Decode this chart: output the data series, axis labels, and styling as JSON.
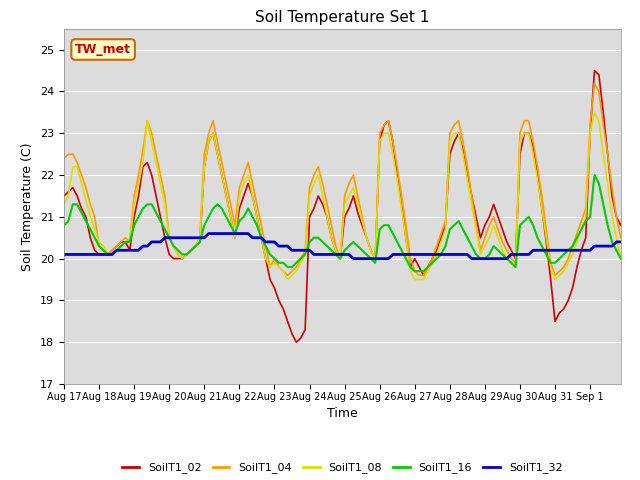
{
  "title": "Soil Temperature Set 1",
  "xlabel": "Time",
  "ylabel": "Soil Temperature (C)",
  "ylim": [
    17.0,
    25.5
  ],
  "yticks": [
    17.0,
    18.0,
    19.0,
    20.0,
    21.0,
    22.0,
    23.0,
    24.0,
    25.0
  ],
  "bg_color": "#dcdcdc",
  "series_colors": {
    "SoilT1_02": "#cc0000",
    "SoilT1_04": "#ff9900",
    "SoilT1_08": "#dddd00",
    "SoilT1_16": "#00cc00",
    "SoilT1_32": "#0000cc"
  },
  "annotation_text": "TW_met",
  "annotation_box_color": "#ffffcc",
  "annotation_box_edge": "#cc6600",
  "dates": [
    "Aug 17",
    "Aug 18",
    "Aug 19",
    "Aug 20",
    "Aug 21",
    "Aug 22",
    "Aug 23",
    "Aug 24",
    "Aug 25",
    "Aug 26",
    "Aug 27",
    "Aug 28",
    "Aug 29",
    "Aug 30",
    "Aug 31",
    "Sep 1"
  ],
  "SoilT1_02": [
    21.5,
    21.6,
    21.7,
    21.5,
    21.2,
    21.0,
    20.5,
    20.2,
    20.1,
    20.1,
    20.1,
    20.2,
    20.3,
    20.4,
    20.4,
    20.2,
    21.0,
    21.5,
    22.2,
    22.3,
    22.0,
    21.5,
    21.0,
    20.5,
    20.1,
    20.0,
    20.0,
    20.0,
    20.1,
    20.2,
    20.3,
    20.4,
    22.2,
    22.8,
    23.0,
    22.5,
    22.0,
    21.5,
    21.0,
    20.5,
    21.2,
    21.5,
    21.8,
    21.5,
    21.0,
    20.5,
    20.0,
    19.5,
    19.3,
    19.0,
    18.8,
    18.5,
    18.2,
    18.0,
    18.1,
    18.3,
    21.0,
    21.2,
    21.5,
    21.3,
    21.0,
    20.5,
    20.2,
    20.0,
    21.0,
    21.2,
    21.5,
    21.1,
    20.8,
    20.5,
    20.2,
    20.0,
    22.8,
    23.2,
    23.3,
    22.8,
    22.0,
    21.3,
    20.5,
    19.8,
    20.0,
    19.8,
    19.6,
    19.8,
    20.0,
    20.2,
    20.5,
    20.8,
    22.5,
    22.8,
    23.0,
    22.6,
    22.0,
    21.5,
    21.0,
    20.5,
    20.8,
    21.0,
    21.3,
    21.0,
    20.7,
    20.4,
    20.2,
    20.0,
    22.5,
    23.0,
    23.0,
    22.7,
    22.0,
    21.2,
    20.4,
    19.5,
    18.5,
    18.7,
    18.8,
    19.0,
    19.3,
    19.8,
    20.2,
    20.5,
    23.0,
    24.5,
    24.4,
    23.5,
    22.5,
    21.5,
    21.0,
    20.8
  ],
  "SoilT1_04": [
    22.4,
    22.5,
    22.5,
    22.3,
    22.0,
    21.7,
    21.3,
    21.0,
    20.3,
    20.2,
    20.1,
    20.2,
    20.3,
    20.4,
    20.5,
    20.4,
    21.5,
    22.0,
    22.6,
    23.3,
    23.0,
    22.5,
    22.0,
    21.5,
    20.5,
    20.3,
    20.1,
    20.0,
    20.1,
    20.2,
    20.3,
    20.5,
    22.5,
    23.0,
    23.3,
    22.8,
    22.3,
    21.8,
    21.3,
    20.8,
    21.7,
    22.0,
    22.3,
    21.8,
    21.3,
    20.8,
    20.3,
    19.8,
    20.0,
    19.8,
    19.7,
    19.6,
    19.7,
    19.8,
    20.0,
    20.2,
    21.7,
    22.0,
    22.2,
    21.8,
    21.3,
    20.8,
    20.3,
    20.0,
    21.5,
    21.8,
    22.0,
    21.5,
    21.0,
    20.5,
    20.2,
    20.0,
    23.0,
    23.2,
    23.3,
    22.8,
    22.2,
    21.5,
    20.8,
    20.0,
    19.7,
    19.6,
    19.6,
    19.8,
    20.0,
    20.3,
    20.6,
    20.9,
    23.0,
    23.2,
    23.3,
    22.8,
    22.2,
    21.5,
    20.8,
    20.2,
    20.5,
    20.8,
    21.0,
    20.7,
    20.4,
    20.2,
    20.0,
    19.9,
    23.0,
    23.3,
    23.3,
    22.8,
    22.2,
    21.5,
    20.7,
    19.9,
    19.6,
    19.7,
    19.8,
    20.0,
    20.3,
    20.6,
    20.9,
    21.2,
    23.2,
    24.2,
    24.0,
    23.2,
    22.5,
    21.7,
    21.0,
    20.5
  ],
  "SoilT1_08": [
    21.3,
    21.5,
    22.2,
    22.2,
    21.8,
    21.4,
    21.0,
    20.7,
    20.4,
    20.3,
    20.1,
    20.1,
    20.2,
    20.3,
    20.4,
    20.4,
    21.3,
    21.8,
    22.3,
    23.3,
    22.8,
    22.3,
    21.8,
    21.3,
    20.5,
    20.3,
    20.1,
    20.0,
    20.1,
    20.2,
    20.3,
    20.5,
    22.2,
    22.8,
    23.0,
    22.5,
    22.0,
    21.5,
    21.0,
    20.5,
    21.5,
    21.8,
    22.0,
    21.5,
    21.0,
    20.5,
    20.0,
    19.8,
    19.9,
    19.8,
    19.7,
    19.5,
    19.6,
    19.7,
    19.9,
    20.1,
    21.5,
    21.8,
    22.0,
    21.5,
    21.0,
    20.5,
    20.2,
    20.0,
    21.3,
    21.5,
    21.7,
    21.3,
    20.9,
    20.5,
    20.2,
    20.0,
    22.8,
    23.0,
    23.0,
    22.5,
    21.9,
    21.2,
    20.5,
    19.7,
    19.5,
    19.5,
    19.5,
    19.7,
    19.9,
    20.1,
    20.4,
    20.7,
    22.8,
    23.0,
    23.0,
    22.5,
    21.9,
    21.3,
    20.7,
    20.1,
    20.3,
    20.5,
    20.8,
    20.5,
    20.2,
    20.0,
    19.9,
    19.8,
    22.8,
    23.0,
    23.0,
    22.5,
    21.9,
    21.2,
    20.5,
    19.8,
    19.5,
    19.6,
    19.7,
    19.9,
    20.1,
    20.4,
    20.7,
    21.0,
    23.0,
    23.5,
    23.3,
    22.5,
    21.8,
    21.0,
    20.5,
    20.0
  ],
  "SoilT1_16": [
    20.8,
    20.9,
    21.3,
    21.3,
    21.1,
    20.9,
    20.7,
    20.5,
    20.3,
    20.2,
    20.1,
    20.1,
    20.2,
    20.3,
    20.4,
    20.4,
    20.8,
    21.0,
    21.2,
    21.3,
    21.3,
    21.1,
    20.9,
    20.7,
    20.5,
    20.3,
    20.2,
    20.1,
    20.1,
    20.2,
    20.3,
    20.4,
    20.8,
    21.0,
    21.2,
    21.3,
    21.2,
    21.0,
    20.8,
    20.6,
    20.9,
    21.0,
    21.2,
    21.0,
    20.8,
    20.5,
    20.3,
    20.1,
    20.0,
    19.9,
    19.9,
    19.8,
    19.8,
    19.9,
    20.0,
    20.1,
    20.4,
    20.5,
    20.5,
    20.4,
    20.3,
    20.2,
    20.1,
    20.0,
    20.2,
    20.3,
    20.4,
    20.3,
    20.2,
    20.1,
    20.0,
    19.9,
    20.7,
    20.8,
    20.8,
    20.6,
    20.4,
    20.2,
    20.0,
    19.8,
    19.7,
    19.7,
    19.7,
    19.8,
    19.9,
    20.0,
    20.1,
    20.3,
    20.7,
    20.8,
    20.9,
    20.7,
    20.5,
    20.3,
    20.1,
    20.0,
    20.0,
    20.1,
    20.3,
    20.2,
    20.1,
    20.0,
    19.9,
    19.8,
    20.8,
    20.9,
    21.0,
    20.8,
    20.5,
    20.3,
    20.1,
    19.9,
    19.9,
    20.0,
    20.1,
    20.2,
    20.3,
    20.5,
    20.7,
    20.9,
    21.0,
    22.0,
    21.8,
    21.3,
    20.8,
    20.4,
    20.2,
    20.0
  ],
  "SoilT1_32": [
    20.1,
    20.1,
    20.1,
    20.1,
    20.1,
    20.1,
    20.1,
    20.1,
    20.1,
    20.1,
    20.1,
    20.1,
    20.2,
    20.2,
    20.2,
    20.2,
    20.2,
    20.2,
    20.3,
    20.3,
    20.4,
    20.4,
    20.4,
    20.5,
    20.5,
    20.5,
    20.5,
    20.5,
    20.5,
    20.5,
    20.5,
    20.5,
    20.5,
    20.6,
    20.6,
    20.6,
    20.6,
    20.6,
    20.6,
    20.6,
    20.6,
    20.6,
    20.6,
    20.5,
    20.5,
    20.5,
    20.4,
    20.4,
    20.4,
    20.3,
    20.3,
    20.3,
    20.2,
    20.2,
    20.2,
    20.2,
    20.2,
    20.1,
    20.1,
    20.1,
    20.1,
    20.1,
    20.1,
    20.1,
    20.1,
    20.1,
    20.0,
    20.0,
    20.0,
    20.0,
    20.0,
    20.0,
    20.0,
    20.0,
    20.0,
    20.1,
    20.1,
    20.1,
    20.1,
    20.1,
    20.1,
    20.1,
    20.1,
    20.1,
    20.1,
    20.1,
    20.1,
    20.1,
    20.1,
    20.1,
    20.1,
    20.1,
    20.1,
    20.0,
    20.0,
    20.0,
    20.0,
    20.0,
    20.0,
    20.0,
    20.0,
    20.0,
    20.1,
    20.1,
    20.1,
    20.1,
    20.1,
    20.2,
    20.2,
    20.2,
    20.2,
    20.2,
    20.2,
    20.2,
    20.2,
    20.2,
    20.2,
    20.2,
    20.2,
    20.2,
    20.2,
    20.3,
    20.3,
    20.3,
    20.3,
    20.3,
    20.4,
    20.4
  ]
}
